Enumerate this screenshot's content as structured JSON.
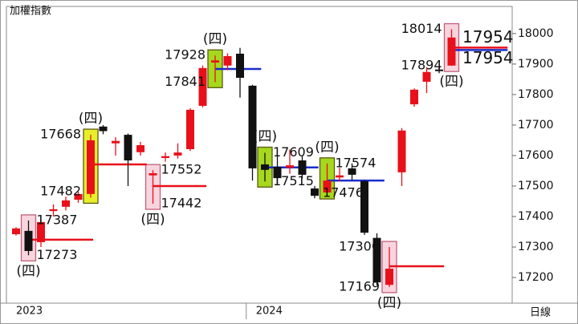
{
  "chart_data": {
    "type": "candlestick",
    "title": "加權指數",
    "timeframe_label": "日線",
    "ylim": [
      17116,
      18089
    ],
    "yticks": [
      17200,
      17300,
      17400,
      17500,
      17600,
      17700,
      17800,
      17900,
      18000
    ],
    "up_color": "#e8101a",
    "down_color": "#111111",
    "series": {
      "open": [
        17342,
        17353,
        17316,
        17418,
        17432,
        17455,
        17474,
        17695,
        17640,
        17668,
        17611,
        17535,
        17592,
        17600,
        17621,
        17763,
        17905,
        17895,
        17934,
        17829,
        17571,
        17563,
        17560,
        17584,
        17492,
        17479,
        17528,
        17558,
        17516,
        17330,
        17176,
        17545,
        17768,
        17842,
        17882,
        17895
      ],
      "high": [
        17365,
        17387,
        17390,
        17440,
        17465,
        17482,
        17668,
        17700,
        17660,
        17672,
        17645,
        17552,
        17610,
        17640,
        17755,
        17895,
        17928,
        17935,
        17953,
        17832,
        17609,
        17600,
        17620,
        17600,
        17500,
        17574,
        17560,
        17574,
        17520,
        17345,
        17300,
        17690,
        17820,
        17890,
        17890,
        18014
      ],
      "low": [
        17338,
        17273,
        17300,
        17400,
        17420,
        17445,
        17462,
        17670,
        17600,
        17500,
        17600,
        17442,
        17580,
        17590,
        17615,
        17758,
        17841,
        17880,
        17790,
        17518,
        17515,
        17510,
        17540,
        17525,
        17460,
        17476,
        17515,
        17520,
        17340,
        17175,
        17169,
        17500,
        17760,
        17805,
        17870,
        17894
      ],
      "close": [
        17361,
        17287,
        17382,
        17424,
        17453,
        17474,
        17650,
        17680,
        17648,
        17584,
        17634,
        17542,
        17598,
        17610,
        17750,
        17887,
        17912,
        17926,
        17855,
        17558,
        17553,
        17526,
        17568,
        17537,
        17468,
        17518,
        17535,
        17537,
        17347,
        17184,
        17229,
        17682,
        17816,
        17874,
        17878,
        17987
      ]
    },
    "year_labels": [
      "2023",
      "2024"
    ],
    "highlights": [
      {
        "label": "(四)",
        "color": "#f8d5de"
      },
      {
        "label": "(四)",
        "color": "#e8ef2a"
      },
      {
        "label": "(四)",
        "color": "#f8d5de"
      },
      {
        "label": "(四)",
        "color": "#a6d81e"
      },
      {
        "label": "(四)",
        "color": "#a6d81e"
      },
      {
        "label": "(四)",
        "color": "#a6d81e"
      },
      {
        "label": "(四)",
        "color": "#f8d5de"
      },
      {
        "label": "(四)",
        "color": "#f8d5de"
      }
    ],
    "levels": [
      {
        "value": 17324,
        "color": "#e8101a"
      },
      {
        "value": 17571,
        "color": "#e8101a"
      },
      {
        "value": 17500,
        "color": "#e8101a"
      },
      {
        "value": 17884,
        "color": "#1a2ccc"
      },
      {
        "value": 17561,
        "color": "#1a2ccc"
      },
      {
        "value": 17518,
        "color": "#1a2ccc"
      },
      {
        "value": 17237,
        "color": "#e8101a"
      },
      {
        "value": 17954,
        "color": "#e8101a"
      },
      {
        "value": 17954,
        "color": "#1a2ccc"
      }
    ],
    "annotations": [
      17928,
      17841,
      17668,
      17482,
      17387,
      17273,
      17552,
      17442,
      17609,
      17515,
      17574,
      17476,
      17300,
      17169,
      18014,
      17894
    ]
  }
}
